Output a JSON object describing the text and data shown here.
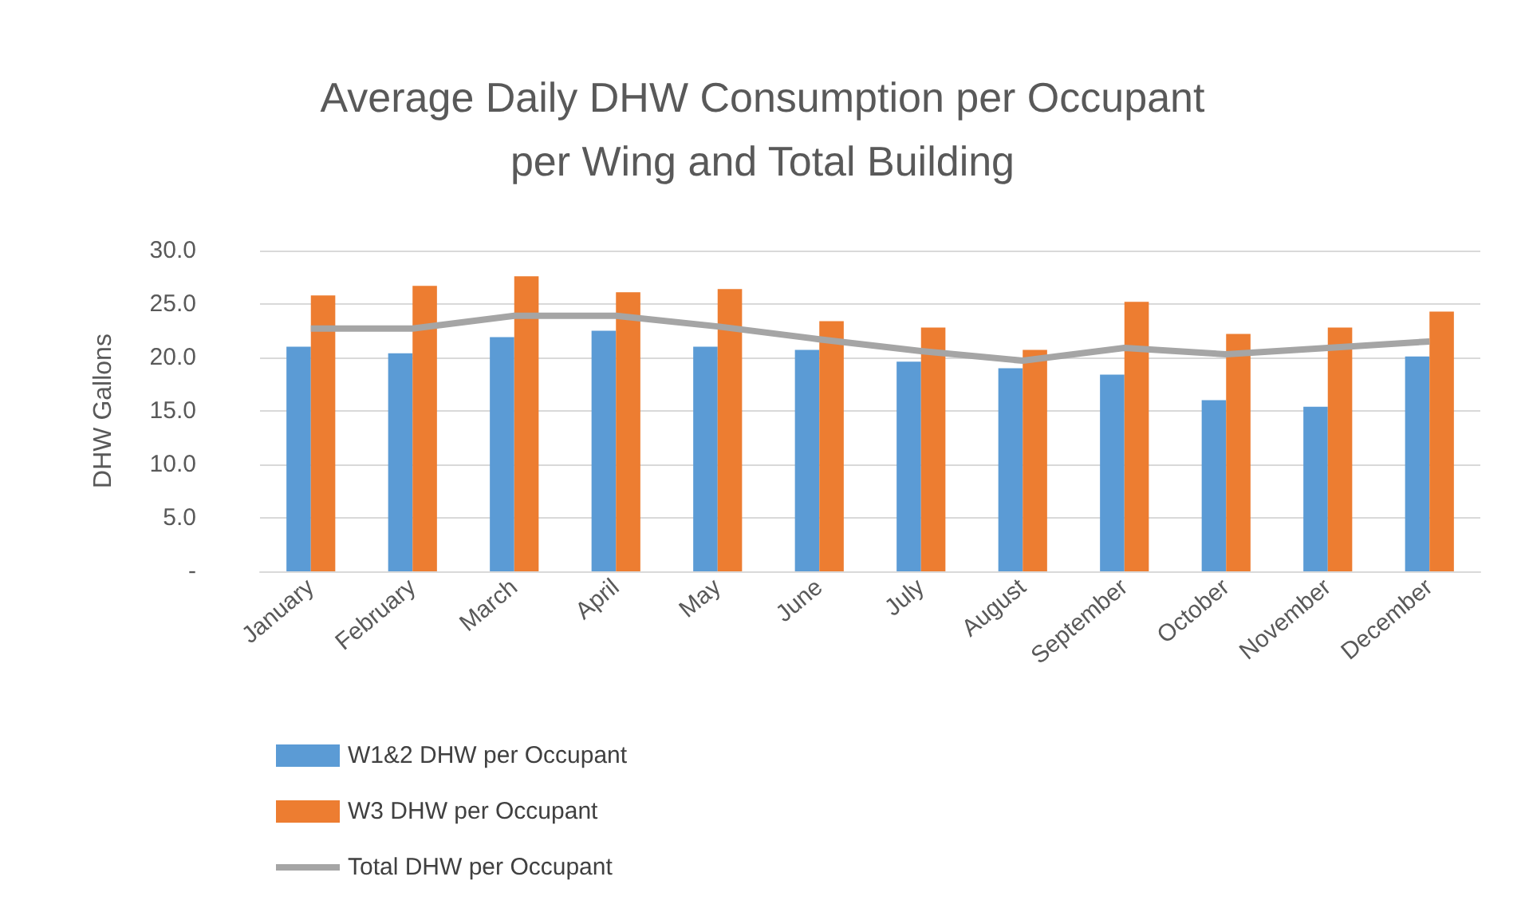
{
  "chart_data": {
    "type": "bar",
    "title": "Average Daily DHW Consumption per Occupant\nper Wing and Total Building",
    "ylabel": "DHW Gallons",
    "categories": [
      "January",
      "February",
      "March",
      "April",
      "May",
      "June",
      "July",
      "August",
      "September",
      "October",
      "November",
      "December"
    ],
    "series": [
      {
        "name": "W1&2 DHW per Occupant",
        "color": "#5b9bd5",
        "values": [
          21.0,
          20.4,
          21.9,
          22.5,
          21.0,
          20.7,
          19.6,
          19.0,
          18.4,
          16.0,
          15.4,
          20.1
        ]
      },
      {
        "name": "W3 DHW per Occupant",
        "color": "#ed7d31",
        "values": [
          25.8,
          26.7,
          27.6,
          26.1,
          26.4,
          23.4,
          22.8,
          20.7,
          25.2,
          22.2,
          22.8,
          24.3
        ]
      },
      {
        "name": "Total DHW per Occupant",
        "type": "line",
        "color": "#a5a5a5",
        "marker": "none",
        "values": [
          22.7,
          22.7,
          23.9,
          23.9,
          22.9,
          21.7,
          20.6,
          19.7,
          20.9,
          20.3,
          20.9,
          21.5
        ]
      }
    ],
    "ylim": [
      0,
      30
    ],
    "yticks": [
      {
        "value": 0,
        "label": "-"
      },
      {
        "value": 5,
        "label": "5.0"
      },
      {
        "value": 10,
        "label": "10.0"
      },
      {
        "value": 15,
        "label": "15.0"
      },
      {
        "value": 20,
        "label": "20.0"
      },
      {
        "value": 25,
        "label": "25.0"
      },
      {
        "value": 30,
        "label": "30.0"
      }
    ],
    "grid": "y",
    "legend": "bottom"
  }
}
